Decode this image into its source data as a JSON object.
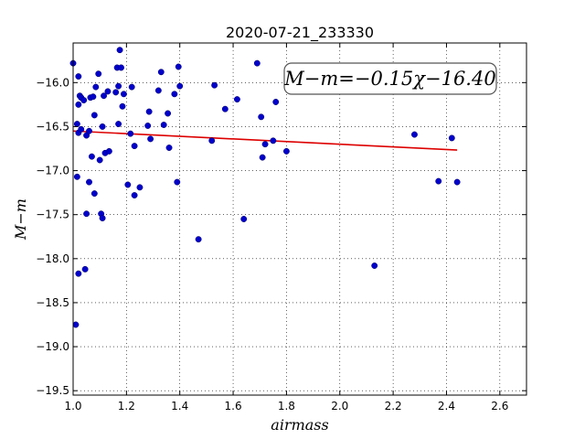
{
  "chart_data": {
    "type": "scatter",
    "title": "2020-07-21_233330",
    "xlabel": "airmass",
    "ylabel": "M−m",
    "xlim": [
      1.0,
      2.7
    ],
    "ylim": [
      -19.55,
      -15.55
    ],
    "y_inverted": true,
    "grid": true,
    "xticks": [
      1.0,
      1.2,
      1.4,
      1.6,
      1.8,
      2.0,
      2.2,
      2.4,
      2.6
    ],
    "xtick_labels": [
      "1.0",
      "1.2",
      "1.4",
      "1.6",
      "1.8",
      "2.0",
      "2.2",
      "2.4",
      "2.6"
    ],
    "yticks": [
      -16.0,
      -16.5,
      -17.0,
      -17.5,
      -18.0,
      -18.5,
      -19.0,
      -19.5
    ],
    "ytick_labels": [
      "−16.0",
      "−16.5",
      "−17.0",
      "−17.5",
      "−18.0",
      "−18.5",
      "−19.0",
      "−19.5"
    ],
    "annotation": "M−m=−0.15χ−16.40",
    "series": [
      {
        "color": "#0000cc",
        "points": [
          [
            1.0,
            -15.78
          ],
          [
            1.01,
            -18.75
          ],
          [
            1.015,
            -16.47
          ],
          [
            1.015,
            -17.07
          ],
          [
            1.02,
            -16.57
          ],
          [
            1.02,
            -16.25
          ],
          [
            1.02,
            -15.93
          ],
          [
            1.02,
            -18.17
          ],
          [
            1.025,
            -16.15
          ],
          [
            1.03,
            -16.53
          ],
          [
            1.03,
            -16.17
          ],
          [
            1.04,
            -16.2
          ],
          [
            1.045,
            -18.12
          ],
          [
            1.05,
            -17.49
          ],
          [
            1.05,
            -16.6
          ],
          [
            1.06,
            -16.55
          ],
          [
            1.06,
            -17.13
          ],
          [
            1.065,
            -16.17
          ],
          [
            1.07,
            -16.84
          ],
          [
            1.075,
            -16.16
          ],
          [
            1.08,
            -16.37
          ],
          [
            1.08,
            -17.26
          ],
          [
            1.085,
            -16.05
          ],
          [
            1.095,
            -15.9
          ],
          [
            1.1,
            -16.88
          ],
          [
            1.105,
            -17.49
          ],
          [
            1.11,
            -17.54
          ],
          [
            1.11,
            -16.5
          ],
          [
            1.115,
            -16.15
          ],
          [
            1.12,
            -16.8
          ],
          [
            1.13,
            -16.1
          ],
          [
            1.135,
            -16.78
          ],
          [
            1.16,
            -16.11
          ],
          [
            1.165,
            -15.83
          ],
          [
            1.17,
            -16.47
          ],
          [
            1.17,
            -16.04
          ],
          [
            1.175,
            -15.63
          ],
          [
            1.18,
            -15.83
          ],
          [
            1.185,
            -16.27
          ],
          [
            1.19,
            -16.13
          ],
          [
            1.205,
            -17.16
          ],
          [
            1.215,
            -16.58
          ],
          [
            1.22,
            -16.05
          ],
          [
            1.23,
            -17.28
          ],
          [
            1.23,
            -16.72
          ],
          [
            1.25,
            -17.19
          ],
          [
            1.28,
            -16.49
          ],
          [
            1.285,
            -16.33
          ],
          [
            1.29,
            -16.64
          ],
          [
            1.32,
            -16.09
          ],
          [
            1.33,
            -15.88
          ],
          [
            1.34,
            -16.48
          ],
          [
            1.355,
            -16.35
          ],
          [
            1.36,
            -16.74
          ],
          [
            1.38,
            -16.13
          ],
          [
            1.39,
            -17.13
          ],
          [
            1.395,
            -15.82
          ],
          [
            1.4,
            -16.04
          ],
          [
            1.47,
            -17.78
          ],
          [
            1.52,
            -16.66
          ],
          [
            1.53,
            -16.03
          ],
          [
            1.57,
            -16.3
          ],
          [
            1.615,
            -16.19
          ],
          [
            1.64,
            -17.55
          ],
          [
            1.69,
            -15.78
          ],
          [
            1.705,
            -16.39
          ],
          [
            1.71,
            -16.85
          ],
          [
            1.72,
            -16.7
          ],
          [
            1.75,
            -16.66
          ],
          [
            1.76,
            -16.22
          ],
          [
            1.8,
            -16.78
          ],
          [
            2.13,
            -18.08
          ],
          [
            2.28,
            -16.59
          ],
          [
            2.37,
            -17.12
          ],
          [
            2.42,
            -16.63
          ],
          [
            2.44,
            -17.13
          ]
        ]
      },
      {
        "color": "#dd0000",
        "fit_line": [
          [
            1.0,
            -16.55
          ],
          [
            2.44,
            -16.766
          ]
        ]
      }
    ]
  }
}
